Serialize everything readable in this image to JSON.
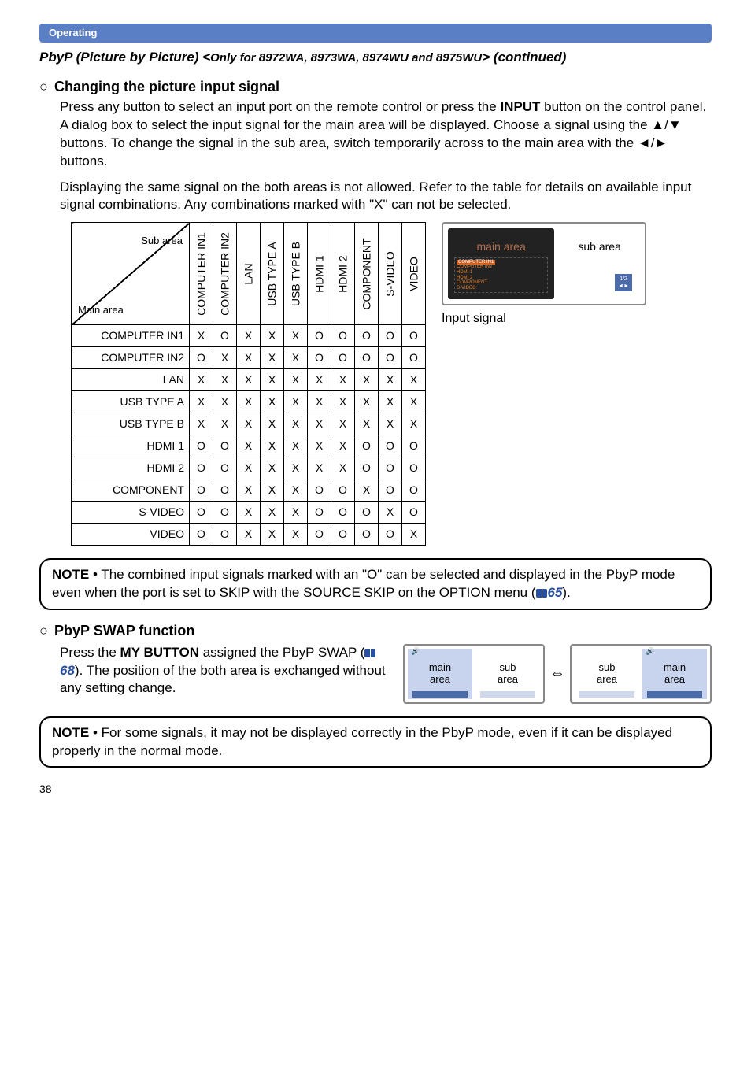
{
  "header_bar": "Operating",
  "title": {
    "main": "PbyP (Picture by Picture) <",
    "only": "Only for 8972WA, 8973WA, 8974WU and 8975WU",
    "cont": "> (continued)"
  },
  "sec1": {
    "bullet": "○",
    "heading": "Changing the picture input signal",
    "p1a": "Press any button to select an input port on the remote control or press the ",
    "p1b": "INPUT",
    "p1c": " button on the control panel. A dialog box to select the input signal for the main area will be displayed. Choose a signal using the ▲/▼ buttons. To change the signal in the sub area, switch temporarily across to the main area with the ◄/► buttons.",
    "p2": "Displaying the same signal on the both areas is not allowed. Refer to the table for details on available input signal combinations. Any combinations marked with \"X\" can not be selected."
  },
  "table": {
    "diag_sub": "Sub area",
    "diag_main": "Main area",
    "cols": [
      "COMPUTER IN1",
      "COMPUTER IN2",
      "LAN",
      "USB TYPE A",
      "USB TYPE B",
      "HDMI 1",
      "HDMI 2",
      "COMPONENT",
      "S-VIDEO",
      "VIDEO"
    ],
    "rows": [
      {
        "h": "COMPUTER IN1",
        "v": [
          "X",
          "O",
          "X",
          "X",
          "X",
          "O",
          "O",
          "O",
          "O",
          "O"
        ]
      },
      {
        "h": "COMPUTER IN2",
        "v": [
          "O",
          "X",
          "X",
          "X",
          "X",
          "O",
          "O",
          "O",
          "O",
          "O"
        ]
      },
      {
        "h": "LAN",
        "v": [
          "X",
          "X",
          "X",
          "X",
          "X",
          "X",
          "X",
          "X",
          "X",
          "X"
        ]
      },
      {
        "h": "USB TYPE A",
        "v": [
          "X",
          "X",
          "X",
          "X",
          "X",
          "X",
          "X",
          "X",
          "X",
          "X"
        ]
      },
      {
        "h": "USB TYPE B",
        "v": [
          "X",
          "X",
          "X",
          "X",
          "X",
          "X",
          "X",
          "X",
          "X",
          "X"
        ]
      },
      {
        "h": "HDMI 1",
        "v": [
          "O",
          "O",
          "X",
          "X",
          "X",
          "X",
          "X",
          "O",
          "O",
          "O"
        ]
      },
      {
        "h": "HDMI 2",
        "v": [
          "O",
          "O",
          "X",
          "X",
          "X",
          "X",
          "X",
          "O",
          "O",
          "O"
        ]
      },
      {
        "h": "COMPONENT",
        "v": [
          "O",
          "O",
          "X",
          "X",
          "X",
          "O",
          "O",
          "X",
          "O",
          "O"
        ]
      },
      {
        "h": "S-VIDEO",
        "v": [
          "O",
          "O",
          "X",
          "X",
          "X",
          "O",
          "O",
          "O",
          "X",
          "O"
        ]
      },
      {
        "h": "VIDEO",
        "v": [
          "O",
          "O",
          "X",
          "X",
          "X",
          "O",
          "O",
          "O",
          "O",
          "X"
        ]
      }
    ]
  },
  "monitor": {
    "main_label": "main area",
    "sub_label": "sub area",
    "menu_hl": "COMPUTER IN1",
    "menu_items": "COMPUTER IN2\nHDMI 1\nHDMI 2\nCOMPONENT\nS-VIDEO",
    "chip": "1/2\n◄►",
    "caption": "Input signal"
  },
  "note1": {
    "label": "NOTE",
    "t1": "  • The combined input signals marked with an \"O\" can be selected and displayed in the PbyP mode even when the port is set to SKIP with the SOURCE SKIP on the OPTION menu (",
    "ref": "65",
    "t2": ")."
  },
  "sec2": {
    "bullet": "○",
    "heading": "PbyP SWAP function",
    "t1": "Press the ",
    "t2": "MY BUTTON",
    "t3": " assigned the PbyP SWAP (",
    "ref": "68",
    "t4": "). The position of the both area is exchanged without any setting change."
  },
  "swap": {
    "main": "main",
    "area": "area",
    "sub": "sub",
    "arrow": "⇔"
  },
  "note2": {
    "label": "NOTE",
    "t": "  • For some signals, it may not be displayed correctly in the PbyP mode, even if it can be displayed properly in the normal mode."
  },
  "pagenum": "38"
}
